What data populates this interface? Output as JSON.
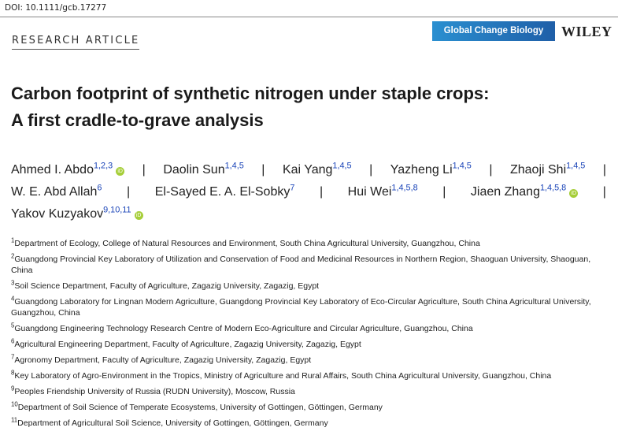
{
  "header": {
    "doi": "DOI: 10.1111/gcb.17277",
    "section": "RESEARCH ARTICLE",
    "journal": "Global Change Biology",
    "publisher": "WILEY"
  },
  "title": [
    "Carbon footprint of synthetic nitrogen under staple crops:",
    "A first cradle-to-grave analysis"
  ],
  "separator": "|",
  "author_lines": [
    [
      {
        "name": "Ahmed I. Abdo",
        "affil": "1,2,3",
        "orcid": true
      },
      {
        "name": "Daolin Sun",
        "affil": "1,4,5"
      },
      {
        "name": "Kai Yang",
        "affil": "1,4,5"
      },
      {
        "name": "Yazheng Li",
        "affil": "1,4,5"
      },
      {
        "name": "Zhaoji Shi",
        "affil": "1,4,5"
      }
    ],
    [
      {
        "name": "W. E. Abd Allah",
        "affil": "6"
      },
      {
        "name": "El-Sayed E. A. El-Sobky",
        "affil": "7"
      },
      {
        "name": "Hui Wei",
        "affil": "1,4,5,8"
      },
      {
        "name": "Jiaen Zhang",
        "affil": "1,4,5,8",
        "orcid": true
      }
    ],
    [
      {
        "name": "Yakov Kuzyakov",
        "affil": "9,10,11",
        "orcid": true
      }
    ]
  ],
  "affiliations": [
    {
      "num": "1",
      "text": "Department of Ecology, College of Natural Resources and Environment, South China Agricultural University, Guangzhou, China"
    },
    {
      "num": "2",
      "text": "Guangdong Provincial Key Laboratory of Utilization and Conservation of Food and Medicinal Resources in Northern Region, Shaoguan University, Shaoguan, China"
    },
    {
      "num": "3",
      "text": "Soil Science Department, Faculty of Agriculture, Zagazig University, Zagazig, Egypt"
    },
    {
      "num": "4",
      "text": "Guangdong Laboratory for Lingnan Modern Agriculture, Guangdong Provincial Key Laboratory of Eco-Circular Agriculture, South China Agricultural University, Guangzhou, China"
    },
    {
      "num": "5",
      "text": "Guangdong Engineering Technology Research Centre of Modern Eco-Agriculture and Circular Agriculture, Guangzhou, China"
    },
    {
      "num": "6",
      "text": "Agricultural Engineering Department, Faculty of Agriculture, Zagazig University, Zagazig, Egypt"
    },
    {
      "num": "7",
      "text": "Agronomy Department, Faculty of Agriculture, Zagazig University, Zagazig, Egypt"
    },
    {
      "num": "8",
      "text": "Key Laboratory of Agro-Environment in the Tropics, Ministry of Agriculture and Rural Affairs, South China Agricultural University, Guangzhou, China"
    },
    {
      "num": "9",
      "text": "Peoples Friendship University of Russia (RUDN University), Moscow, Russia"
    },
    {
      "num": "10",
      "text": "Department of Soil Science of Temperate Ecosystems, University of Gottingen, Göttingen, Germany"
    },
    {
      "num": "11",
      "text": "Department of Agricultural Soil Science, University of Gottingen, Göttingen, Germany"
    }
  ]
}
